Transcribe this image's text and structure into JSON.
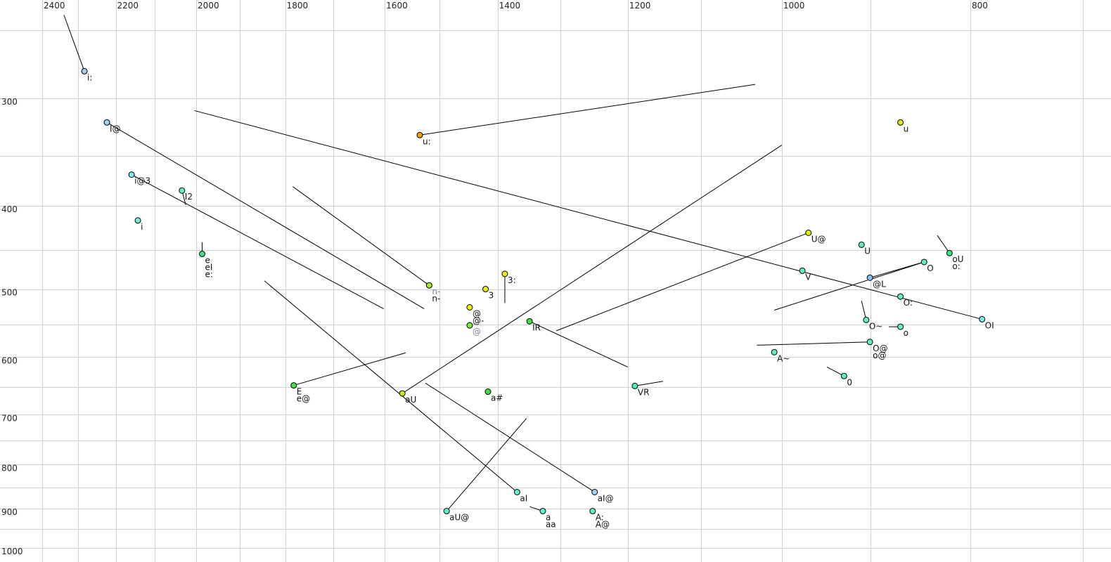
{
  "chart_data": {
    "type": "scatter",
    "title": "",
    "xlabel": "",
    "ylabel": "",
    "x_scale": "log",
    "y_scale": "log",
    "x_reversed": true,
    "xlim": [
      2400,
      700
    ],
    "ylim": [
      250,
      1000
    ],
    "grid": true,
    "x_ticks": [
      2400,
      2200,
      2000,
      1800,
      1600,
      1400,
      1200,
      1000,
      800
    ],
    "y_ticks": [
      300,
      400,
      500,
      600,
      700,
      800,
      900,
      1000
    ],
    "points": [
      {
        "labels": [
          "i:"
        ],
        "f2": 2283,
        "f1": 279,
        "color": "#a8c8f8",
        "trail": [
          2339,
          240
        ]
      },
      {
        "labels": [
          "I@"
        ],
        "f2": 2223,
        "f1": 320,
        "color": "#a0d0ff",
        "trail": [
          1527,
          527
        ]
      },
      {
        "labels": [
          "i@3"
        ],
        "f2": 2159,
        "f1": 368,
        "color": "#80e8f8",
        "trail": [
          1602,
          527
        ]
      },
      {
        "labels": [
          "I2"
        ],
        "f2": 2034,
        "f1": 384,
        "color": "#60f0c0",
        "trail": [
          2025,
          399
        ]
      },
      {
        "labels": [
          "i"
        ],
        "f2": 2143,
        "f1": 416,
        "color": "#70f0e0"
      },
      {
        "labels": [
          "e",
          "eI",
          "e:"
        ],
        "f2": 1986,
        "f1": 455,
        "color": "#40e080",
        "trail": [
          1986,
          441
        ]
      },
      {
        "labels": [
          "u:"
        ],
        "f2": 1535,
        "f1": 331,
        "color": "#f0a000",
        "trail": [
          1032,
          289
        ]
      },
      {
        "labels": [
          "n-",
          "n-"
        ],
        "alt_first": true,
        "f2": 1518,
        "f1": 495,
        "color": "#a0f020",
        "trail": [
          1784,
          380
        ]
      },
      {
        "labels": [
          "3:"
        ],
        "f2": 1388,
        "f1": 480,
        "color": "#f0f000",
        "trail": [
          1388,
          519
        ]
      },
      {
        "labels": [
          "3"
        ],
        "f2": 1420,
        "f1": 500,
        "color": "#f0f000"
      },
      {
        "labels": [
          "@",
          "@-"
        ],
        "f2": 1447,
        "f1": 525,
        "color": "#f0f000"
      },
      {
        "labels": [
          "@"
        ],
        "alt_first": true,
        "f2": 1447,
        "f1": 551,
        "color": "#80f040"
      },
      {
        "labels": [
          "IR"
        ],
        "f2": 1348,
        "f1": 545,
        "color": "#40e040",
        "trail": [
          1200,
          616
        ]
      },
      {
        "labels": [
          "aU"
        ],
        "f2": 1567,
        "f1": 661,
        "color": "#c0f000",
        "trail": [
          1000,
          340
        ]
      },
      {
        "labels": [
          "E",
          "e@"
        ],
        "f2": 1782,
        "f1": 647,
        "color": "#40e040",
        "trail": [
          1561,
          593
        ]
      },
      {
        "labels": [
          "a#"
        ],
        "f2": 1416,
        "f1": 658,
        "color": "#40e040"
      },
      {
        "labels": [
          "VR"
        ],
        "f2": 1190,
        "f1": 648,
        "color": "#50f0c0",
        "trail": [
          1151,
          640
        ]
      },
      {
        "labels": [
          "aI"
        ],
        "f2": 1368,
        "f1": 861,
        "color": "#60f0d0",
        "trail": [
          1845,
          489
        ]
      },
      {
        "labels": [
          "aU@"
        ],
        "f2": 1487,
        "f1": 906,
        "color": "#60f0d0",
        "trail": [
          1353,
          707
        ]
      },
      {
        "labels": [
          "a",
          "aa"
        ],
        "f2": 1327,
        "f1": 906,
        "color": "#60f0d0",
        "trail": [
          1348,
          895
        ]
      },
      {
        "labels": [
          "aI@"
        ],
        "f2": 1248,
        "f1": 861,
        "color": "#a0d0ff",
        "trail": [
          1525,
          643
        ]
      },
      {
        "labels": [
          "A:",
          "A@"
        ],
        "f2": 1251,
        "f1": 906,
        "color": "#60f0c0"
      },
      {
        "labels": [
          "U@"
        ],
        "f2": 969,
        "f1": 430,
        "color": "#e0f000",
        "trail": [
          1306,
          559
        ]
      },
      {
        "labels": [
          "U"
        ],
        "f2": 910,
        "f1": 444,
        "color": "#60f0c0"
      },
      {
        "labels": [
          "V"
        ],
        "f2": 976,
        "f1": 476,
        "color": "#60f0c0"
      },
      {
        "labels": [
          "oU",
          "o:"
        ],
        "f2": 820,
        "f1": 454,
        "color": "#40e080",
        "trail": [
          832,
          433
        ]
      },
      {
        "labels": [
          "O"
        ],
        "f2": 845,
        "f1": 465,
        "color": "#60f0c0",
        "trail": [
          1009,
          529
        ]
      },
      {
        "labels": [
          "@L"
        ],
        "f2": 901,
        "f1": 485,
        "color": "#80c0f0",
        "trail": [
          848,
          466
        ]
      },
      {
        "labels": [
          "O:"
        ],
        "f2": 869,
        "f1": 510,
        "color": "#60f0c0"
      },
      {
        "labels": [
          "OI"
        ],
        "f2": 789,
        "f1": 542,
        "color": "#80e8f0",
        "trail": [
          2004,
          310
        ]
      },
      {
        "labels": [
          "O~"
        ],
        "f2": 905,
        "f1": 543,
        "color": "#60f0c0",
        "trail": [
          910,
          516
        ]
      },
      {
        "labels": [
          "o"
        ],
        "f2": 869,
        "f1": 553,
        "color": "#60f0c0",
        "trail": [
          881,
          553
        ]
      },
      {
        "labels": [
          "O@",
          "o@"
        ],
        "f2": 901,
        "f1": 576,
        "color": "#60f0c0",
        "trail": [
          1030,
          581
        ]
      },
      {
        "labels": [
          "A~"
        ],
        "f2": 1009,
        "f1": 592,
        "color": "#60f0c0"
      },
      {
        "labels": [
          "0"
        ],
        "f2": 929,
        "f1": 631,
        "color": "#60f0c0",
        "trail": [
          948,
          616
        ]
      },
      {
        "labels": [
          "u"
        ],
        "f2": 869,
        "f1": 320,
        "color": "#e0f000"
      }
    ]
  }
}
